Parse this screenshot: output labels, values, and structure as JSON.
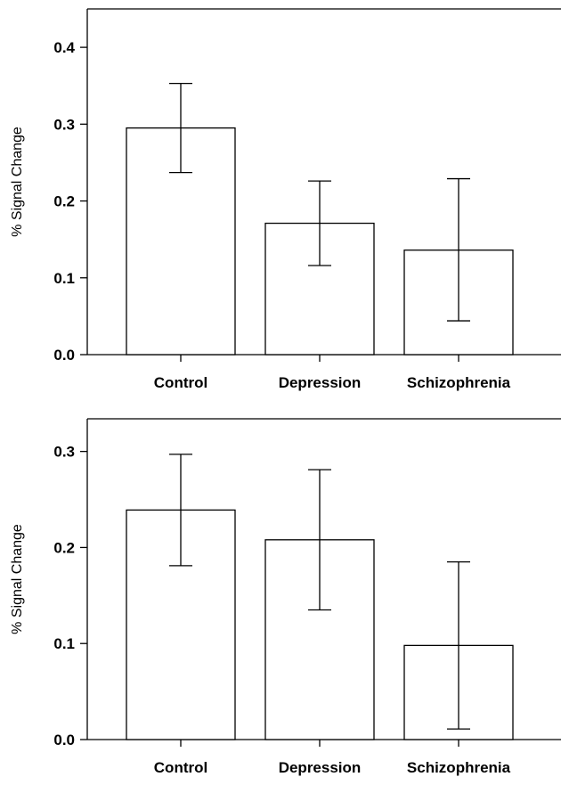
{
  "chart_data": [
    {
      "type": "bar",
      "categories": [
        "Control",
        "Depression",
        "Schizophrenia"
      ],
      "values": [
        0.295,
        0.171,
        0.136
      ],
      "error_low": [
        0.237,
        0.116,
        0.044
      ],
      "error_high": [
        0.353,
        0.226,
        0.229
      ],
      "ylabel": "% Signal Change",
      "xlabel": "",
      "ylim": [
        0,
        0.45
      ],
      "yticks": [
        0.0,
        0.1,
        0.2,
        0.3,
        0.4
      ],
      "ytick_labels": [
        "0.0",
        "0.1",
        "0.2",
        "0.3",
        "0.4"
      ],
      "grid": false,
      "bar_fill": "#ffffff",
      "stroke": "#000000"
    },
    {
      "type": "bar",
      "categories": [
        "Control",
        "Depression",
        "Schizophrenia"
      ],
      "values": [
        0.239,
        0.208,
        0.098
      ],
      "error_low": [
        0.181,
        0.135,
        0.011
      ],
      "error_high": [
        0.297,
        0.281,
        0.185
      ],
      "ylabel": "% Signal Change",
      "xlabel": "",
      "ylim": [
        0,
        0.334
      ],
      "yticks": [
        0.0,
        0.1,
        0.2,
        0.3
      ],
      "ytick_labels": [
        "0.0",
        "0.1",
        "0.2",
        "0.3"
      ],
      "grid": false,
      "bar_fill": "#ffffff",
      "stroke": "#000000"
    }
  ]
}
